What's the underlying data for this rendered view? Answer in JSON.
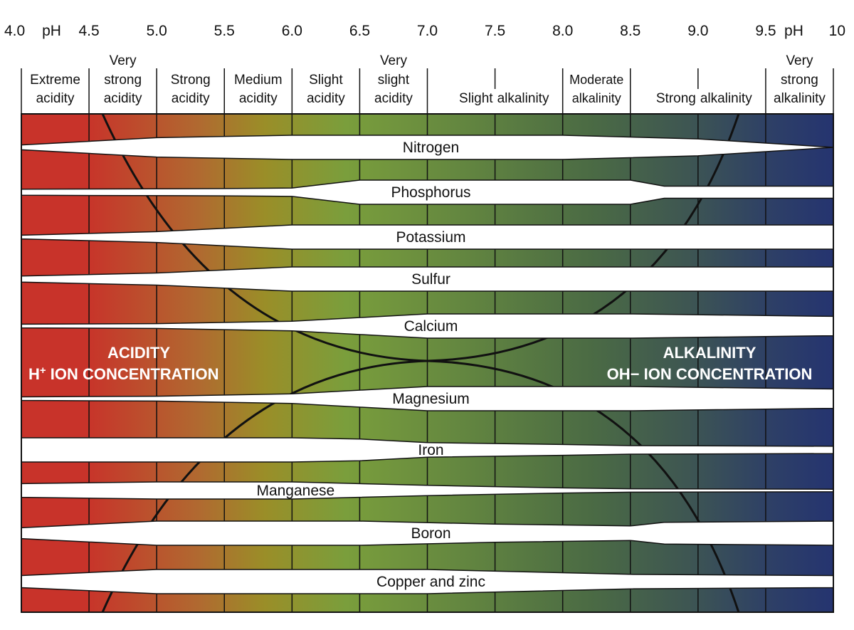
{
  "chart_data": {
    "type": "band_diagram",
    "title": "",
    "ph_axis": {
      "min": 4.0,
      "max": 10.0,
      "ticks": [
        {
          "ph": 4.0,
          "label": "4.0"
        },
        {
          "ph": 4.5,
          "label": "4.5"
        },
        {
          "ph": 5.0,
          "label": "5.0"
        },
        {
          "ph": 5.5,
          "label": "5.5"
        },
        {
          "ph": 6.0,
          "label": "6.0"
        },
        {
          "ph": 6.5,
          "label": "6.5"
        },
        {
          "ph": 7.0,
          "label": "7.0"
        },
        {
          "ph": 7.5,
          "label": "7.5"
        },
        {
          "ph": 8.0,
          "label": "8.0"
        },
        {
          "ph": 8.5,
          "label": "8.5"
        },
        {
          "ph": 9.0,
          "label": "9.0"
        },
        {
          "ph": 9.5,
          "label": "9.5"
        },
        {
          "ph": 10.0,
          "label": "10"
        }
      ],
      "unit_labels": [
        {
          "ph": 4.25,
          "label": "pH"
        },
        {
          "ph": 9.75,
          "label": "pH"
        }
      ]
    },
    "zones": [
      {
        "from": 4.0,
        "to": 4.5,
        "lines": [
          "Extreme",
          "acidity"
        ],
        "top_word": ""
      },
      {
        "from": 4.5,
        "to": 5.0,
        "lines": [
          "strong",
          "acidity"
        ],
        "top_word": "Very"
      },
      {
        "from": 5.0,
        "to": 5.5,
        "lines": [
          "Strong",
          "acidity"
        ],
        "top_word": ""
      },
      {
        "from": 5.5,
        "to": 6.0,
        "lines": [
          "Medium",
          "acidity"
        ],
        "top_word": ""
      },
      {
        "from": 6.0,
        "to": 6.5,
        "lines": [
          "Slight",
          "acidity"
        ],
        "top_word": ""
      },
      {
        "from": 6.5,
        "to": 7.0,
        "lines": [
          "slight",
          "acidity"
        ],
        "top_word": "Very"
      },
      {
        "from": 7.0,
        "to": 8.0,
        "lines": [
          "Slight alkalinity"
        ],
        "top_word": ""
      },
      {
        "from": 8.0,
        "to": 8.5,
        "lines": [
          "Moderate",
          "alkalinity"
        ],
        "top_word": ""
      },
      {
        "from": 8.5,
        "to": 9.5,
        "lines": [
          "Strong alkalinity"
        ],
        "top_word": ""
      },
      {
        "from": 9.5,
        "to": 10.0,
        "lines": [
          "strong",
          "alkalinity"
        ],
        "top_word": "Very"
      }
    ],
    "nutrients": [
      {
        "name": "Nitrogen",
        "label_ph": 7.0,
        "halfwidth": [
          [
            4.0,
            0.2
          ],
          [
            5.0,
            0.8
          ],
          [
            6.0,
            1.0
          ],
          [
            7.0,
            1.0
          ],
          [
            8.0,
            1.0
          ],
          [
            9.0,
            0.7
          ],
          [
            10.0,
            0.0
          ]
        ]
      },
      {
        "name": "Phosphorus",
        "label_ph": 7.0,
        "halfwidth": [
          [
            4.0,
            0.25
          ],
          [
            5.5,
            0.3
          ],
          [
            6.0,
            0.35
          ],
          [
            6.5,
            1.0
          ],
          [
            8.5,
            1.0
          ],
          [
            8.75,
            0.5
          ],
          [
            10.0,
            0.5
          ]
        ]
      },
      {
        "name": "Potassium",
        "label_ph": 7.0,
        "halfwidth": [
          [
            4.0,
            0.15
          ],
          [
            5.0,
            0.45
          ],
          [
            6.0,
            1.0
          ],
          [
            10.0,
            1.0
          ]
        ]
      },
      {
        "name": "Sulfur",
        "label_ph": 7.0,
        "halfwidth": [
          [
            4.0,
            0.25
          ],
          [
            5.0,
            0.5
          ],
          [
            6.0,
            1.0
          ],
          [
            10.0,
            1.0
          ]
        ]
      },
      {
        "name": "Calcium",
        "label_ph": 7.0,
        "halfwidth": [
          [
            4.0,
            0.15
          ],
          [
            5.0,
            0.2
          ],
          [
            6.0,
            0.4
          ],
          [
            7.0,
            1.0
          ],
          [
            8.5,
            1.0
          ],
          [
            10.0,
            0.8
          ]
        ]
      },
      {
        "name": "Magnesium",
        "label_ph": 7.0,
        "halfwidth": [
          [
            4.0,
            0.15
          ],
          [
            5.0,
            0.2
          ],
          [
            6.0,
            0.4
          ],
          [
            7.0,
            1.0
          ],
          [
            8.5,
            1.0
          ],
          [
            10.0,
            0.8
          ]
        ]
      },
      {
        "name": "Iron",
        "label_ph": 7.0,
        "halfwidth": [
          [
            4.0,
            1.0
          ],
          [
            6.0,
            1.0
          ],
          [
            6.5,
            0.9
          ],
          [
            7.0,
            0.6
          ],
          [
            8.0,
            0.45
          ],
          [
            8.5,
            0.35
          ],
          [
            10.0,
            0.3
          ]
        ]
      },
      {
        "name": "Manganese",
        "label_ph": 6.0,
        "halfwidth": [
          [
            4.0,
            0.8
          ],
          [
            5.0,
            1.0
          ],
          [
            6.0,
            1.0
          ],
          [
            7.0,
            0.6
          ],
          [
            8.0,
            0.3
          ],
          [
            8.5,
            0.2
          ],
          [
            10.0,
            0.15
          ]
        ]
      },
      {
        "name": "Boron",
        "label_ph": 7.0,
        "halfwidth": [
          [
            4.0,
            0.45
          ],
          [
            5.0,
            1.0
          ],
          [
            6.5,
            1.0
          ],
          [
            7.5,
            0.75
          ],
          [
            8.5,
            0.6
          ],
          [
            8.75,
            0.9
          ],
          [
            10.0,
            1.0
          ]
        ]
      },
      {
        "name": "Copper and zinc",
        "label_ph": 7.0,
        "halfwidth": [
          [
            4.0,
            0.5
          ],
          [
            5.0,
            1.0
          ],
          [
            7.0,
            1.0
          ],
          [
            8.5,
            0.6
          ],
          [
            10.0,
            0.5
          ]
        ]
      }
    ],
    "acidity_label": {
      "line1": "ACIDITY",
      "line2_pre": "H",
      "line2_sup": "+",
      "line2_post": " ION CONCENTRATION"
    },
    "alkalinity_label": {
      "line1": "ALKALINITY",
      "line2": "OH− ION CONCENTRATION"
    },
    "colors": {
      "acid": "#c8332a",
      "mid1": "#b06a30",
      "mid2": "#9a8e28",
      "neutral": "#7a9e3c",
      "mid3": "#557a44",
      "mid4": "#3e5652",
      "alkaline": "#253470"
    }
  }
}
